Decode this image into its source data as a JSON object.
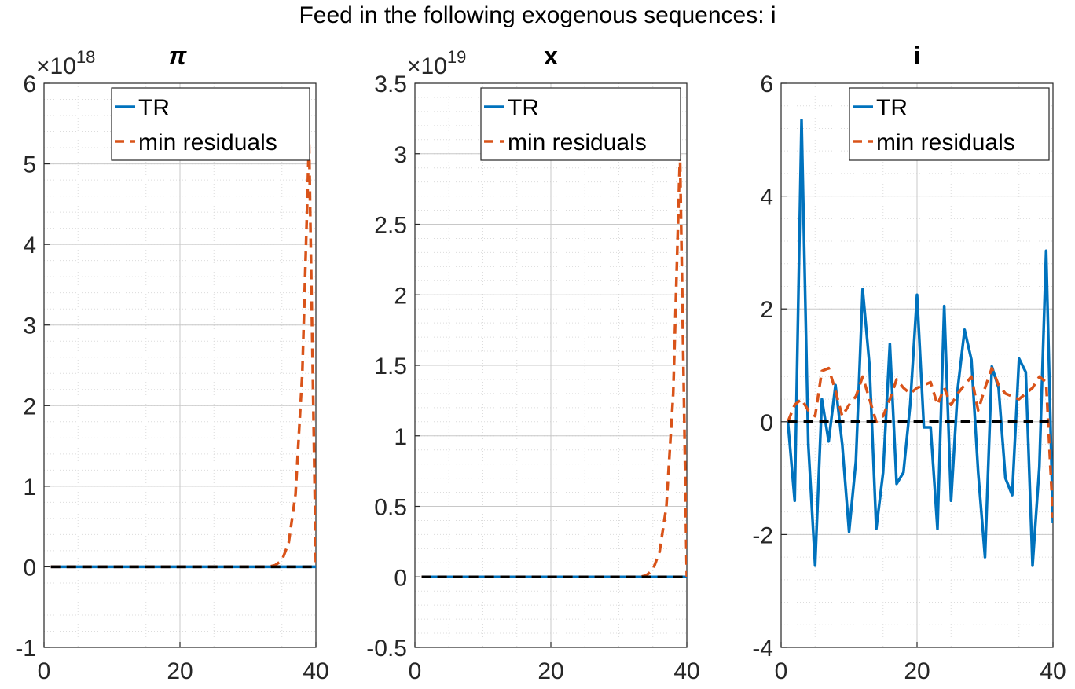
{
  "figure_title": "Feed in the following exogenous sequences: i",
  "colors": {
    "tr": "#0072BD",
    "min_residuals": "#D95319",
    "zero": "#000000",
    "grid": "#dcdcdc"
  },
  "chart_data": [
    {
      "type": "line",
      "title": "π",
      "exponent_base": "×10",
      "exponent_power": "18",
      "xlim": [
        0,
        40
      ],
      "ylim": [
        -1,
        6
      ],
      "x_ticks": [
        0,
        20,
        40
      ],
      "x_tick_labels": [
        "0",
        "20",
        "40"
      ],
      "y_ticks": [
        -1,
        0,
        1,
        2,
        3,
        4,
        5,
        6
      ],
      "y_tick_labels": [
        "-1",
        "0",
        "1",
        "2",
        "3",
        "4",
        "5",
        "6"
      ],
      "legend": {
        "placement": "top-right",
        "entries": [
          "TR",
          "min residuals"
        ]
      },
      "series": [
        {
          "name": "TR",
          "style": "solid",
          "x": [
            1,
            5,
            10,
            15,
            20,
            25,
            30,
            35,
            40
          ],
          "y": [
            0,
            0,
            0,
            0,
            0,
            0,
            0,
            0,
            0
          ]
        },
        {
          "name": "min residuals",
          "style": "dashed",
          "x": [
            1,
            5,
            10,
            15,
            20,
            25,
            30,
            33,
            34,
            35,
            36,
            37,
            38,
            39,
            40
          ],
          "y": [
            0,
            0,
            0,
            0,
            0,
            0,
            0,
            0,
            0.02,
            0.08,
            0.3,
            0.9,
            2.4,
            5.3,
            0
          ]
        },
        {
          "name": "",
          "style": "zero-dashed",
          "x": [
            1,
            40
          ],
          "y": [
            0,
            0
          ]
        }
      ]
    },
    {
      "type": "line",
      "title": "x",
      "exponent_base": "×10",
      "exponent_power": "19",
      "xlim": [
        0,
        40
      ],
      "ylim": [
        -0.5,
        3.5
      ],
      "x_ticks": [
        0,
        20,
        40
      ],
      "x_tick_labels": [
        "0",
        "20",
        "40"
      ],
      "y_ticks": [
        -0.5,
        0,
        0.5,
        1,
        1.5,
        2,
        2.5,
        3,
        3.5
      ],
      "y_tick_labels": [
        "-0.5",
        "0",
        "0.5",
        "1",
        "1.5",
        "2",
        "2.5",
        "3",
        "3.5"
      ],
      "legend": {
        "placement": "top-right",
        "entries": [
          "TR",
          "min residuals"
        ]
      },
      "series": [
        {
          "name": "TR",
          "style": "solid",
          "x": [
            1,
            5,
            10,
            15,
            20,
            25,
            30,
            35,
            40
          ],
          "y": [
            0,
            0,
            0,
            0,
            0,
            0,
            0,
            0,
            0
          ]
        },
        {
          "name": "min residuals",
          "style": "dashed",
          "x": [
            1,
            5,
            10,
            15,
            20,
            25,
            30,
            33,
            34,
            35,
            36,
            37,
            38,
            39,
            40
          ],
          "y": [
            0,
            0,
            0,
            0,
            0,
            0,
            0,
            0,
            0.01,
            0.05,
            0.18,
            0.5,
            1.3,
            3.0,
            0
          ]
        },
        {
          "name": "",
          "style": "zero-dashed",
          "x": [
            1,
            40
          ],
          "y": [
            0,
            0
          ]
        }
      ]
    },
    {
      "type": "line",
      "title": "i",
      "exponent_base": "",
      "exponent_power": "",
      "xlim": [
        0,
        40
      ],
      "ylim": [
        -4,
        6
      ],
      "x_ticks": [
        0,
        20,
        40
      ],
      "x_tick_labels": [
        "0",
        "20",
        "40"
      ],
      "y_ticks": [
        -4,
        -2,
        0,
        2,
        4,
        6
      ],
      "y_tick_labels": [
        "-4",
        "-2",
        "0",
        "2",
        "4",
        "6"
      ],
      "legend": {
        "placement": "top-right",
        "entries": [
          "TR",
          "min residuals"
        ]
      },
      "series": [
        {
          "name": "TR",
          "style": "solid",
          "x": [
            1,
            2,
            3,
            4,
            5,
            6,
            7,
            8,
            9,
            10,
            11,
            12,
            13,
            14,
            15,
            16,
            17,
            18,
            19,
            20,
            21,
            22,
            23,
            24,
            25,
            26,
            27,
            28,
            29,
            30,
            31,
            32,
            33,
            34,
            35,
            36,
            37,
            38,
            39,
            40
          ],
          "y": [
            0,
            -1.4,
            5.35,
            -0.4,
            -2.55,
            0.4,
            -0.35,
            0.65,
            -0.4,
            -1.95,
            -0.7,
            2.35,
            1.0,
            -1.9,
            -0.9,
            1.38,
            -1.1,
            -0.9,
            0.3,
            2.25,
            -0.1,
            -0.1,
            -1.9,
            2.05,
            -1.4,
            0.6,
            1.63,
            1.1,
            -0.9,
            -2.4,
            0.98,
            0.6,
            -1.0,
            -1.3,
            1.12,
            0.88,
            -2.55,
            -0.8,
            3.03,
            -1.8
          ]
        },
        {
          "name": "min residuals",
          "style": "dashed",
          "x": [
            1,
            2,
            3,
            4,
            5,
            6,
            7,
            8,
            9,
            10,
            11,
            12,
            13,
            14,
            15,
            16,
            17,
            18,
            19,
            20,
            21,
            22,
            23,
            24,
            25,
            26,
            27,
            28,
            29,
            30,
            31,
            32,
            33,
            34,
            35,
            36,
            37,
            38,
            39,
            40
          ],
          "y": [
            0,
            0.3,
            0.4,
            0.2,
            0.1,
            0.9,
            0.95,
            0.55,
            0.1,
            0.3,
            0.45,
            0.8,
            0.4,
            0.0,
            0.1,
            0.4,
            0.75,
            0.6,
            0.5,
            0.6,
            0.65,
            0.7,
            0.3,
            0.6,
            0.3,
            0.5,
            0.65,
            0.8,
            0.2,
            0.6,
            0.95,
            0.65,
            0.5,
            0.45,
            0.4,
            0.5,
            0.6,
            0.8,
            0.7,
            -1.7
          ]
        },
        {
          "name": "",
          "style": "zero-dashed",
          "x": [
            1,
            40
          ],
          "y": [
            0,
            0
          ]
        }
      ]
    }
  ]
}
